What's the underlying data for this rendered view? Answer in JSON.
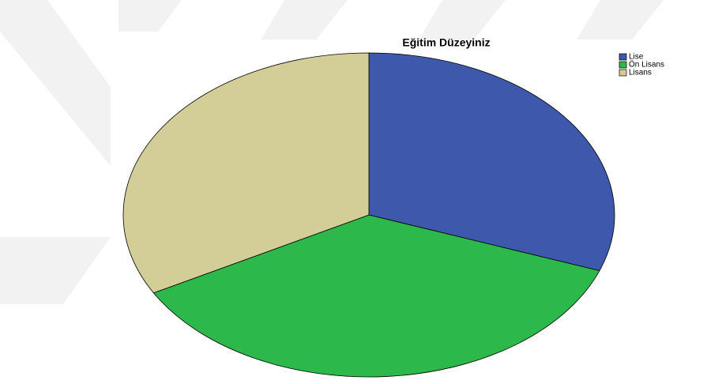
{
  "chart_data": {
    "type": "pie",
    "title": "Eğitim Düzeyiniz",
    "categories": [
      "Lise",
      "Ön Lisans",
      "Lisans"
    ],
    "values": [
      30.6,
      36.4,
      33.0
    ],
    "colors": [
      "#3e58ac",
      "#2db84b",
      "#d3ce97"
    ],
    "legend": "top-right"
  }
}
